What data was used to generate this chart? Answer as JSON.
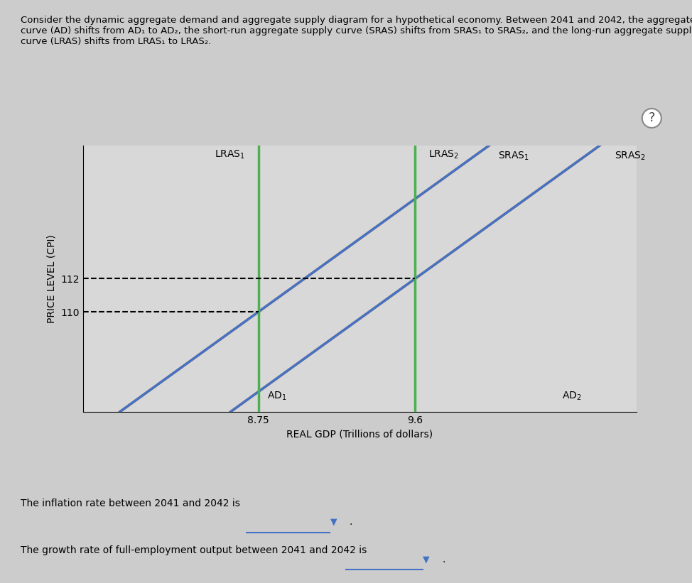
{
  "xlabel": "REAL GDP (Trillions of dollars)",
  "ylabel": "PRICE LEVEL (CPI)",
  "xlim": [
    7.8,
    10.8
  ],
  "ylim": [
    104,
    120
  ],
  "lras1_x": 8.75,
  "lras2_x": 9.6,
  "price_eq1": 110,
  "price_eq2": 112,
  "lras_color": "#4caf50",
  "sras_color": "#e87c2b",
  "ad_color": "#4472c4",
  "slope_sras": 8.0,
  "slope_ad": -8.0,
  "bottom_text1": "The inflation rate between 2041 and 2042 is",
  "bottom_text2": "The growth rate of full-employment output between 2041 and 2042 is"
}
